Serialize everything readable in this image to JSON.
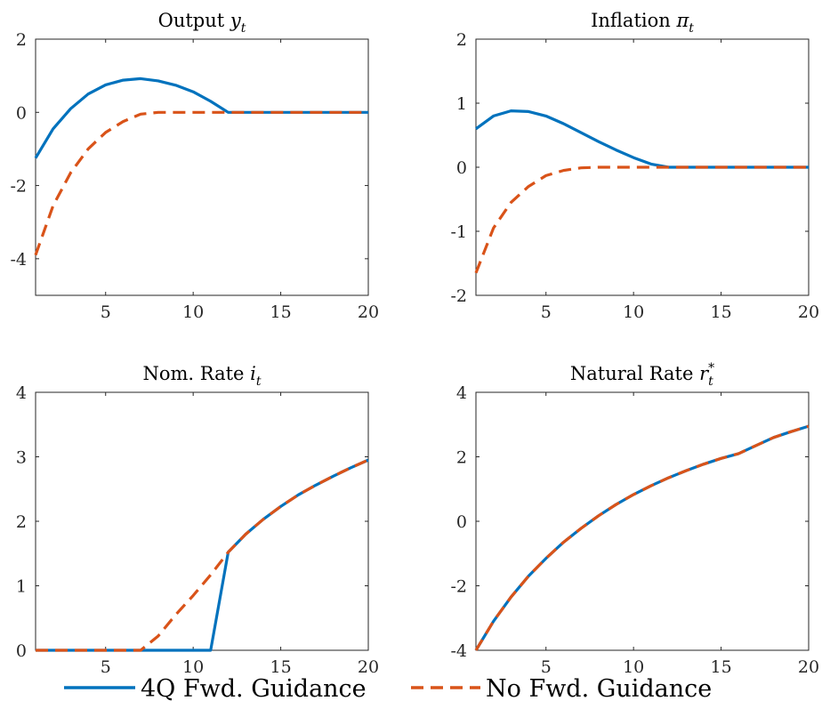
{
  "colors": {
    "series_1": "#0072BD",
    "series_2": "#D95319",
    "axes": "#262626"
  },
  "legend": {
    "position": "bottom",
    "items": [
      {
        "label": "4Q Fwd. Guidance",
        "style": "solid",
        "color": "#0072BD"
      },
      {
        "label": "No Fwd. Guidance",
        "style": "dashed",
        "color": "#D95319"
      }
    ]
  },
  "chart_data": [
    {
      "type": "line",
      "title": "Output",
      "title_symbol": "y",
      "title_sub": "t",
      "title_sup": "",
      "xlim": [
        1,
        20
      ],
      "ylim": [
        -5,
        2
      ],
      "xticks": [
        5,
        10,
        15,
        20
      ],
      "yticks": [
        -4,
        -2,
        0,
        2
      ],
      "grid": false,
      "x": [
        1,
        2,
        3,
        4,
        5,
        6,
        7,
        8,
        9,
        10,
        11,
        12,
        13,
        14,
        15,
        16,
        17,
        18,
        19,
        20
      ],
      "series": [
        {
          "name": "4Q Fwd. Guidance",
          "style": "solid",
          "values": [
            -1.25,
            -0.45,
            0.1,
            0.5,
            0.75,
            0.88,
            0.92,
            0.86,
            0.74,
            0.56,
            0.3,
            0,
            0,
            0,
            0,
            0,
            0,
            0,
            0,
            0
          ]
        },
        {
          "name": "No Fwd. Guidance",
          "style": "dashed",
          "values": [
            -3.9,
            -2.55,
            -1.65,
            -1.0,
            -0.55,
            -0.25,
            -0.05,
            0,
            0,
            0,
            0,
            0,
            0,
            0,
            0,
            0,
            0,
            0,
            0,
            0
          ]
        }
      ]
    },
    {
      "type": "line",
      "title": "Inflation",
      "title_symbol": "π",
      "title_sub": "t",
      "title_sup": "",
      "xlim": [
        1,
        20
      ],
      "ylim": [
        -2,
        2
      ],
      "xticks": [
        5,
        10,
        15,
        20
      ],
      "yticks": [
        -2,
        -1,
        0,
        1,
        2
      ],
      "grid": false,
      "x": [
        1,
        2,
        3,
        4,
        5,
        6,
        7,
        8,
        9,
        10,
        11,
        12,
        13,
        14,
        15,
        16,
        17,
        18,
        19,
        20
      ],
      "series": [
        {
          "name": "4Q Fwd. Guidance",
          "style": "solid",
          "values": [
            0.6,
            0.8,
            0.88,
            0.87,
            0.8,
            0.68,
            0.54,
            0.4,
            0.27,
            0.15,
            0.05,
            0,
            0,
            0,
            0,
            0,
            0,
            0,
            0,
            0
          ]
        },
        {
          "name": "No Fwd. Guidance",
          "style": "dashed",
          "values": [
            -1.65,
            -0.95,
            -0.55,
            -0.3,
            -0.13,
            -0.05,
            -0.01,
            0,
            0,
            0,
            0,
            0,
            0,
            0,
            0,
            0,
            0,
            0,
            0,
            0
          ]
        }
      ]
    },
    {
      "type": "line",
      "title": "Nom. Rate",
      "title_symbol": "i",
      "title_sub": "t",
      "title_sup": "",
      "xlim": [
        1,
        20
      ],
      "ylim": [
        0,
        4
      ],
      "xticks": [
        5,
        10,
        15,
        20
      ],
      "yticks": [
        0,
        1,
        2,
        3,
        4
      ],
      "grid": false,
      "x": [
        1,
        2,
        3,
        4,
        5,
        6,
        7,
        8,
        9,
        10,
        11,
        12,
        13,
        14,
        15,
        16,
        17,
        18,
        19,
        20
      ],
      "series": [
        {
          "name": "4Q Fwd. Guidance",
          "style": "solid",
          "values": [
            0,
            0,
            0,
            0,
            0,
            0,
            0,
            0,
            0,
            0,
            0,
            1.52,
            1.8,
            2.03,
            2.23,
            2.41,
            2.56,
            2.7,
            2.83,
            2.95
          ]
        },
        {
          "name": "No Fwd. Guidance",
          "style": "dashed",
          "values": [
            0,
            0,
            0,
            0,
            0,
            0,
            0,
            0.22,
            0.55,
            0.85,
            1.17,
            1.52,
            1.8,
            2.03,
            2.23,
            2.41,
            2.56,
            2.7,
            2.83,
            2.95
          ]
        }
      ]
    },
    {
      "type": "line",
      "title": "Natural Rate",
      "title_symbol": "r",
      "title_sub": "t",
      "title_sup": "*",
      "xlim": [
        1,
        20
      ],
      "ylim": [
        -4,
        4
      ],
      "xticks": [
        5,
        10,
        15,
        20
      ],
      "yticks": [
        -4,
        -2,
        0,
        2,
        4
      ],
      "grid": false,
      "x": [
        1,
        2,
        3,
        4,
        5,
        6,
        7,
        8,
        9,
        10,
        11,
        12,
        13,
        14,
        15,
        16,
        17,
        18,
        19,
        20
      ],
      "series": [
        {
          "name": "4Q Fwd. Guidance",
          "style": "solid",
          "values": [
            -4.0,
            -3.1,
            -2.35,
            -1.7,
            -1.15,
            -0.65,
            -0.22,
            0.17,
            0.52,
            0.83,
            1.1,
            1.35,
            1.57,
            1.77,
            1.95,
            2.1,
            2.35,
            2.6,
            2.78,
            2.95
          ]
        },
        {
          "name": "No Fwd. Guidance",
          "style": "dashed",
          "values": [
            -4.0,
            -3.1,
            -2.35,
            -1.7,
            -1.15,
            -0.65,
            -0.22,
            0.17,
            0.52,
            0.83,
            1.1,
            1.35,
            1.57,
            1.77,
            1.95,
            2.1,
            2.35,
            2.6,
            2.78,
            2.95
          ]
        }
      ]
    }
  ]
}
